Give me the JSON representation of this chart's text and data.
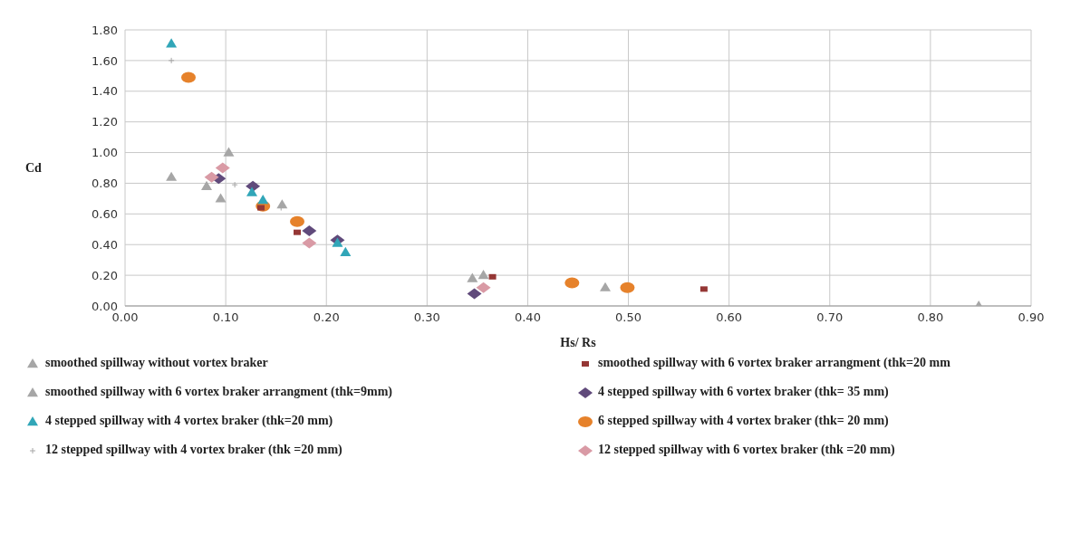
{
  "chart_data": {
    "type": "scatter",
    "xlabel": "Hs/ Rs",
    "ylabel": "Cd",
    "xlim": [
      0,
      0.9
    ],
    "xticks": [
      {
        "value": 0,
        "label": "0.00"
      },
      {
        "value": 0.1,
        "label": "0.10"
      },
      {
        "value": 0.2,
        "label": "0.20"
      },
      {
        "value": 0.3,
        "label": "0.30"
      },
      {
        "value": 0.4,
        "label": "0.40"
      },
      {
        "value": 0.5,
        "label": "0.50"
      },
      {
        "value": 0.6,
        "label": "0.60"
      },
      {
        "value": 0.7,
        "label": "0.70"
      },
      {
        "value": 0.8,
        "label": "0.80"
      },
      {
        "value": 0.9,
        "label": "0.90"
      }
    ],
    "ylim": [
      0,
      1.8
    ],
    "yticks": [
      {
        "value": 0,
        "label": "0.00"
      },
      {
        "value": 0.2,
        "label": "0.20"
      },
      {
        "value": 0.4,
        "label": "0.40"
      },
      {
        "value": 0.6,
        "label": "0.60"
      },
      {
        "value": 0.8,
        "label": "0.80"
      },
      {
        "value": 1,
        "label": "1.00"
      },
      {
        "value": 1.2,
        "label": "1.20"
      },
      {
        "value": 1.4,
        "label": "1.40"
      },
      {
        "value": 1.6,
        "label": "1.60"
      },
      {
        "value": 1.8,
        "label": "1.80"
      }
    ],
    "grid": true,
    "legend": "bottom",
    "series": [
      {
        "name": "smoothed spillway without vortex braker",
        "color": "#a6a6a6",
        "marker": "triangle",
        "x": [
          0.046,
          0.081,
          0.095,
          0.345,
          0.848
        ],
        "values": [
          0.84,
          0.78,
          0.7,
          0.18,
          0
        ]
      },
      {
        "name": "smoothed spillway with 6 vortex braker arrangment (thk=20 mm",
        "color": "#953735",
        "marker": "square",
        "x": [
          0.135,
          0.171,
          0.365,
          0.575
        ],
        "values": [
          0.64,
          0.48,
          0.19,
          0.11
        ]
      },
      {
        "name": "smoothed spillway with 6 vortex braker arrangment (thk=9mm)",
        "color": "#a6a6a6",
        "marker": "triangle",
        "x": [
          0.103,
          0.156,
          0.356,
          0.477
        ],
        "values": [
          1,
          0.66,
          0.2,
          0.12
        ]
      },
      {
        "name": "4 stepped spillway with 6 vortex braker (thk= 35 mm)",
        "color": "#604a7b",
        "marker": "diamond",
        "x": [
          0.093,
          0.127,
          0.183,
          0.211,
          0.347
        ],
        "values": [
          0.83,
          0.78,
          0.49,
          0.43,
          0.08
        ]
      },
      {
        "name": "4 stepped spillway with 4 vortex braker (thk=20 mm)",
        "color": "#31a6b8",
        "marker": "triangle",
        "x": [
          0.046,
          0.126,
          0.137,
          0.211,
          0.219
        ],
        "values": [
          1.71,
          0.74,
          0.69,
          0.41,
          0.35
        ]
      },
      {
        "name": "6  stepped spillway with 4 vortex braker (thk= 20 mm)",
        "color": "#e6822b",
        "marker": "circle",
        "x": [
          0.063,
          0.137,
          0.171,
          0.444,
          0.499
        ],
        "values": [
          1.49,
          0.65,
          0.55,
          0.15,
          0.12
        ]
      },
      {
        "name": "12 stepped spillway with 4 vortex braker (thk =20 mm)",
        "color": "#a6a6a6",
        "marker": "cross",
        "x": [
          0.046,
          0.109,
          0.155
        ],
        "values": [
          1.6,
          0.79,
          0.64
        ]
      },
      {
        "name": "12 stepped spillway with 6 vortex braker (thk =20 mm)",
        "color": "#d99aa5",
        "marker": "diamond",
        "x": [
          0.086,
          0.097,
          0.183,
          0.356
        ],
        "values": [
          0.84,
          0.9,
          0.41,
          0.12
        ]
      }
    ]
  }
}
